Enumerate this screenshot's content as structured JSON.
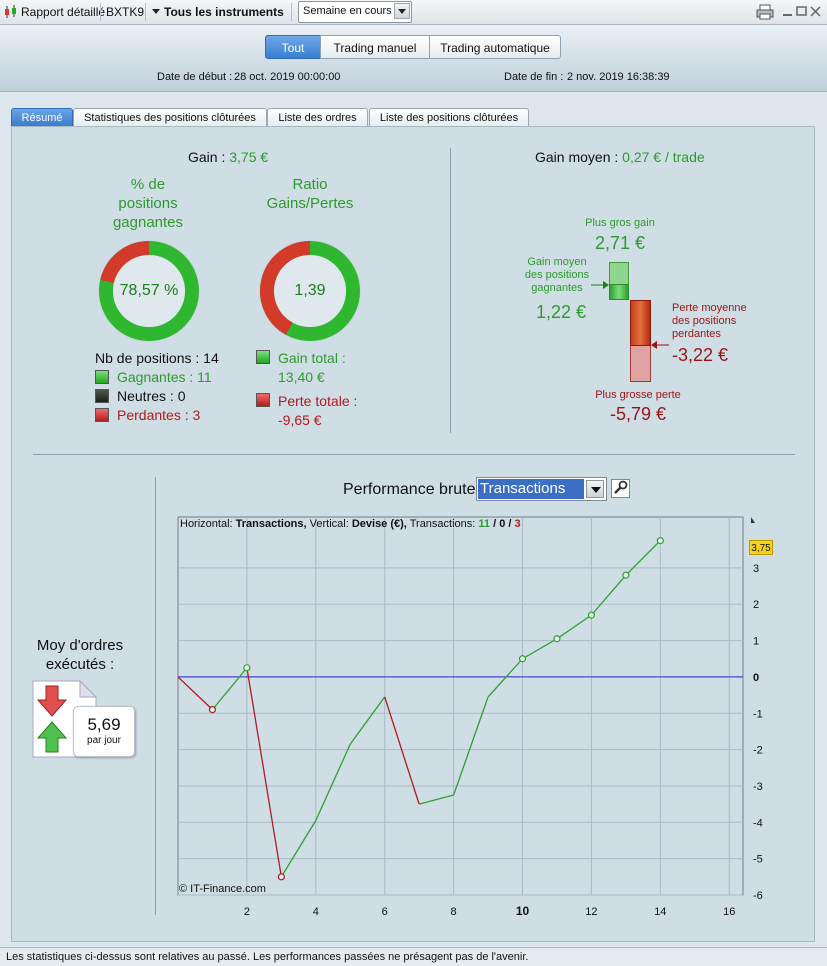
{
  "titlebar": {
    "report_label": "Rapport détaillé",
    "ticker": "BXTK9",
    "instruments_label": "Tous les instruments",
    "period_value": "Semaine en cours"
  },
  "header": {
    "segments": [
      "Tout",
      "Trading manuel",
      "Trading automatique"
    ],
    "start_label": "Date de début :",
    "start_value": "28 oct. 2019 00:00:00",
    "end_label": "Date de fin :",
    "end_value": "2 nov. 2019 16:38:39"
  },
  "tabs": [
    "Résumé",
    "Statistiques des positions clôturées",
    "Liste des ordres",
    "Liste des positions clôturées"
  ],
  "summary": {
    "gain_label": "Gain :",
    "gain_value": "3,75 €",
    "pct_title_1": "% de",
    "pct_title_2": "positions",
    "pct_title_3": "gagnantes",
    "pct_value": "78,57 %",
    "pct_fraction": 0.7857,
    "ratio_title_1": "Ratio",
    "ratio_title_2": "Gains/Pertes",
    "ratio_value": "1,39",
    "ratio_fraction": 0.58,
    "nb_positions": "Nb de positions : 14",
    "gagnantes": "Gagnantes : 11",
    "neutres": "Neutres : 0",
    "perdantes": "Perdantes : 3",
    "gain_total_label": "Gain total :",
    "gain_total_value": "13,40 €",
    "perte_totale_label": "Perte totale :",
    "perte_totale_value": "-9,65 €",
    "gain_moyen_label": "Gain moyen :",
    "gain_moyen_value": "0,27 € / trade",
    "plus_gros_gain_label": "Plus gros gain",
    "plus_gros_gain_value": "2,71 €",
    "gain_moyen_pos_label_1": "Gain moyen",
    "gain_moyen_pos_label_2": "des positions",
    "gain_moyen_pos_label_3": "gagnantes",
    "gain_moyen_pos_value": "1,22 €",
    "perte_moyenne_label_1": "Perte moyenne",
    "perte_moyenne_label_2": "des positions",
    "perte_moyenne_label_3": "perdantes",
    "perte_moyenne_value": "-3,22 €",
    "plus_grosse_perte_label": "Plus grosse perte",
    "plus_grosse_perte_value": "-5,79 €"
  },
  "orders": {
    "label_1": "Moy d'ordres",
    "label_2": "exécutés :",
    "value": "5,69",
    "unit": "par jour"
  },
  "performance": {
    "title": "Performance brute",
    "select_value": "Transactions",
    "info_h_label": "Horizontal:",
    "info_h_value": "Transactions,",
    "info_v_label": "Vertical:",
    "info_v_value": "Devise (€),",
    "info_t_label": "Transactions:",
    "info_win": "11",
    "info_slash1": "/",
    "info_neutral": "0",
    "info_slash2": "/",
    "info_loss": "3",
    "watermark": "© IT-Finance.com",
    "last_value_badge": "3,75"
  },
  "chart_data": {
    "type": "line",
    "x": [
      0,
      1,
      2,
      3,
      4,
      5,
      6,
      7,
      8,
      9,
      10,
      11,
      12,
      13,
      14
    ],
    "y": [
      0,
      -0.9,
      0.25,
      -5.5,
      -3.95,
      -1.85,
      -0.55,
      -3.5,
      -3.25,
      -0.55,
      0.5,
      1.05,
      1.7,
      2.8,
      3.75
    ],
    "loss_transactions": [
      1,
      3,
      7
    ],
    "circle_markers": [
      1,
      2,
      3,
      10,
      11,
      12,
      13,
      14
    ],
    "xlim": [
      0,
      16.4
    ],
    "ylim": [
      -6,
      4.4
    ],
    "x_ticks": [
      "2",
      "4",
      "6",
      "8",
      "10",
      "12",
      "14",
      "16"
    ],
    "y_ticks": [
      "3",
      "2",
      "1",
      "0",
      "-1",
      "-2",
      "-3",
      "-4",
      "-5",
      "-6"
    ],
    "grid": true,
    "colors": {
      "gain": "#2ea12e",
      "loss": "#b01c1c",
      "zero_line": "#2222cc"
    }
  },
  "footer": {
    "disclaimer": "Les statistiques ci-dessus sont relatives au passé. Les performances passées ne présagent pas de l'avenir."
  }
}
